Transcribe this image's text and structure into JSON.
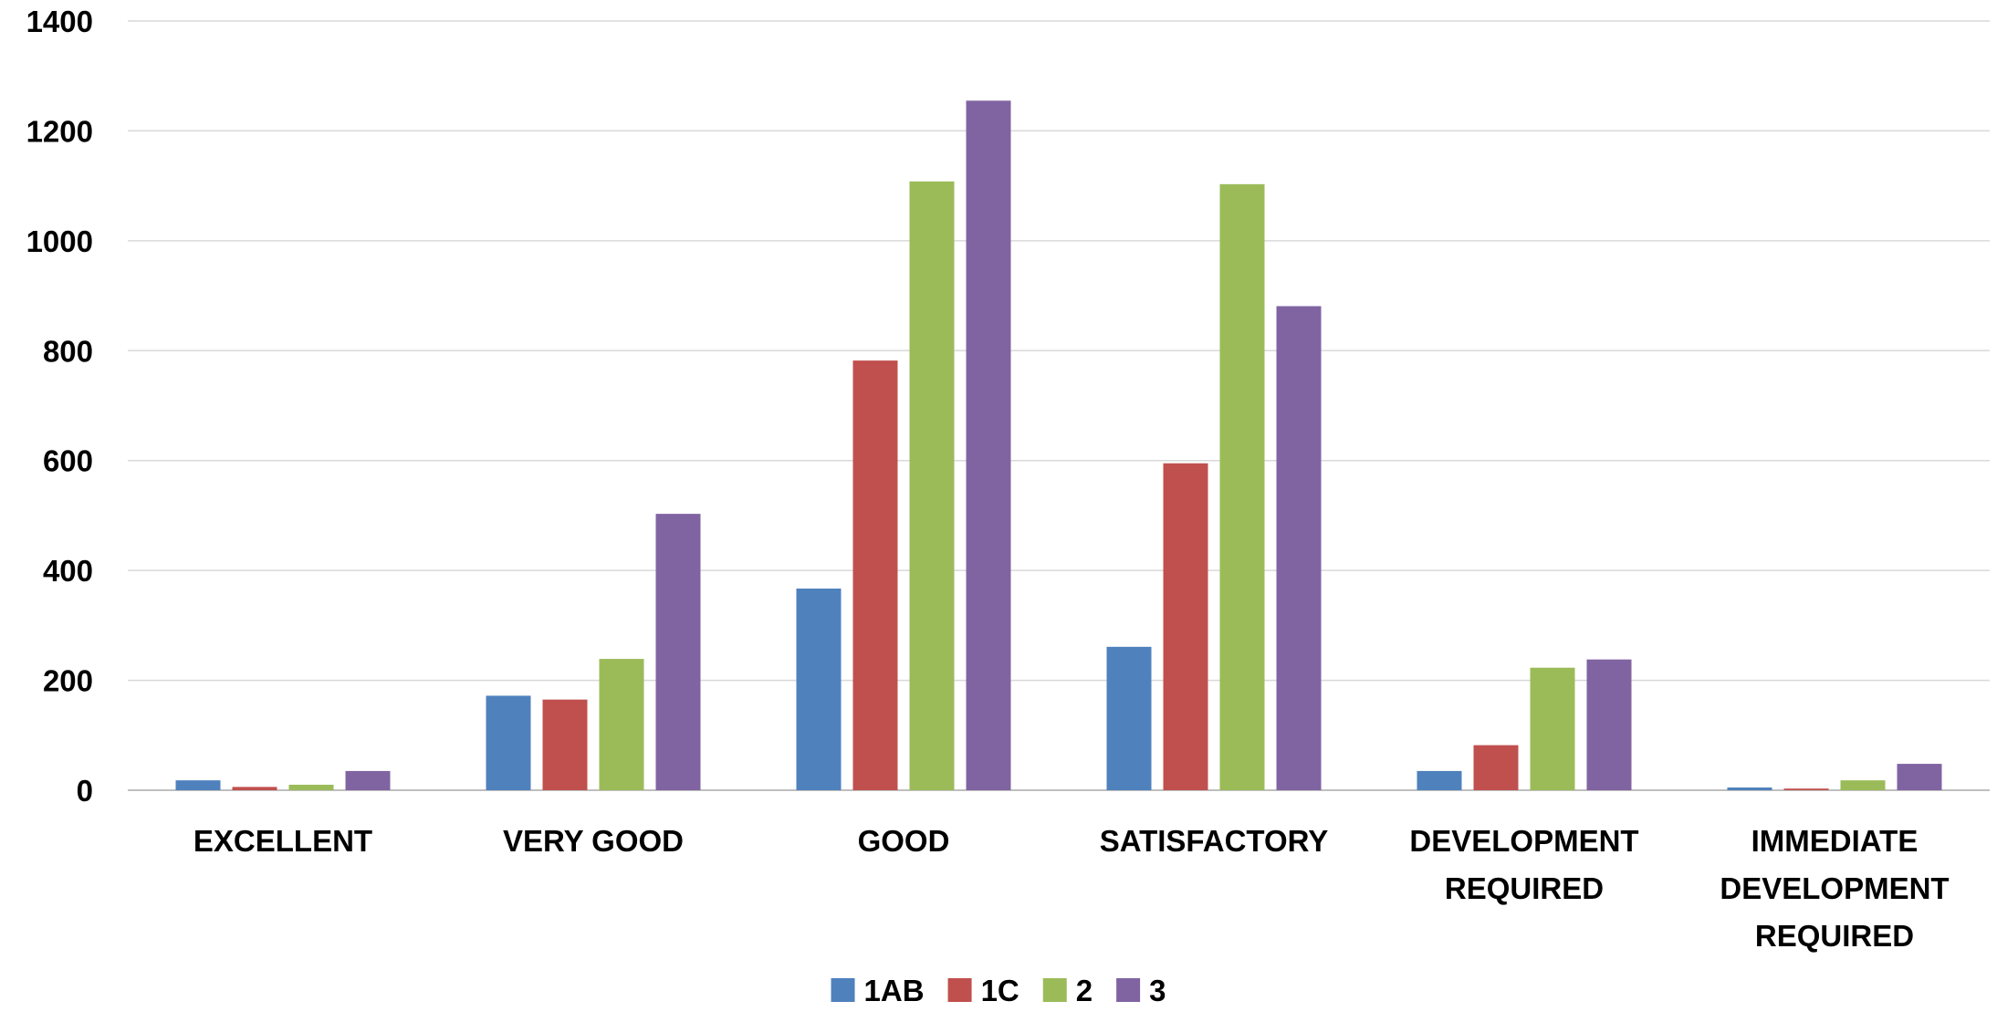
{
  "chart_data": {
    "type": "bar",
    "title": "",
    "xlabel": "",
    "ylabel": "",
    "categories": [
      [
        "EXCELLENT"
      ],
      [
        "VERY GOOD"
      ],
      [
        "GOOD"
      ],
      [
        "SATISFACTORY"
      ],
      [
        "DEVELOPMENT",
        "REQUIRED"
      ],
      [
        "IMMEDIATE",
        "DEVELOPMENT",
        "REQUIRED"
      ]
    ],
    "series": [
      {
        "name": "1AB",
        "color": "#4F81BD",
        "values": [
          18,
          172,
          367,
          261,
          35,
          5
        ]
      },
      {
        "name": "1C",
        "color": "#C0504D",
        "values": [
          6,
          165,
          782,
          595,
          82,
          3
        ]
      },
      {
        "name": "2",
        "color": "#9BBB59",
        "values": [
          10,
          239,
          1108,
          1103,
          223,
          18
        ]
      },
      {
        "name": "3",
        "color": "#8064A2",
        "values": [
          35,
          503,
          1255,
          881,
          238,
          48
        ]
      }
    ],
    "ylim": [
      0,
      1400
    ],
    "yticks": [
      0,
      200,
      400,
      600,
      800,
      1000,
      1200,
      1400
    ],
    "grid": true,
    "legend_position": "bottom"
  }
}
